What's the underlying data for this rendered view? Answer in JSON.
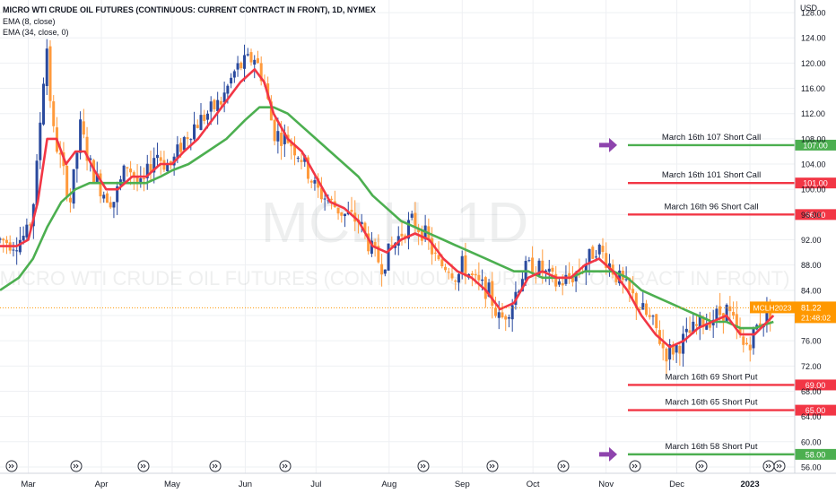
{
  "header": {
    "title": "MICRO WTI CRUDE OIL FUTURES (CONTINUOUS: CURRENT CONTRACT IN FRONT), 1D, NYMEX",
    "ema_fast": "EMA (8, close)",
    "ema_slow": "EMA (34, close, 0)"
  },
  "watermark": {
    "symbol": "MCLH, 1D",
    "name": "MICRO WTI CRUDE OIL FUTURES (CONTINUOUS: CURRENT CONTRACT IN FRONT)"
  },
  "chart_data": {
    "type": "candlestick",
    "y_axis": {
      "unit": "USD",
      "ticks": [
        128,
        124,
        120,
        116,
        112,
        108,
        104,
        100,
        96,
        92,
        88,
        84,
        80,
        76,
        72,
        68,
        64,
        60,
        56
      ],
      "ylim": [
        55,
        130
      ]
    },
    "x_axis": {
      "labels": [
        {
          "label": "Mar",
          "day": 0
        },
        {
          "label": "Apr",
          "day": 31
        },
        {
          "label": "May",
          "day": 61
        },
        {
          "label": "Jun",
          "day": 92
        },
        {
          "label": "Jul",
          "day": 122
        },
        {
          "label": "Aug",
          "day": 153
        },
        {
          "label": "Sep",
          "day": 184
        },
        {
          "label": "Oct",
          "day": 214
        },
        {
          "label": "Nov",
          "day": 245
        },
        {
          "label": "Dec",
          "day": 275
        },
        {
          "label": "2023",
          "day": 306
        }
      ],
      "xlim": [
        -12,
        325
      ]
    },
    "current_price": {
      "symbol": "MCLH2023",
      "price": "81.22",
      "countdown": "21:48:02",
      "value": 81.22
    },
    "price_path": [
      {
        "day": -12,
        "price": 92
      },
      {
        "day": -6,
        "price": 91.5
      },
      {
        "day": 0,
        "price": 93
      },
      {
        "day": 3,
        "price": 100
      },
      {
        "day": 6,
        "price": 116
      },
      {
        "day": 8,
        "price": 123
      },
      {
        "day": 10,
        "price": 110
      },
      {
        "day": 14,
        "price": 104
      },
      {
        "day": 18,
        "price": 98
      },
      {
        "day": 22,
        "price": 110
      },
      {
        "day": 26,
        "price": 104
      },
      {
        "day": 31,
        "price": 100
      },
      {
        "day": 36,
        "price": 98
      },
      {
        "day": 42,
        "price": 104
      },
      {
        "day": 48,
        "price": 100
      },
      {
        "day": 54,
        "price": 106
      },
      {
        "day": 58,
        "price": 104
      },
      {
        "day": 61,
        "price": 104
      },
      {
        "day": 66,
        "price": 108
      },
      {
        "day": 70,
        "price": 110
      },
      {
        "day": 76,
        "price": 112
      },
      {
        "day": 82,
        "price": 114
      },
      {
        "day": 88,
        "price": 119
      },
      {
        "day": 92,
        "price": 120
      },
      {
        "day": 96,
        "price": 121
      },
      {
        "day": 100,
        "price": 117
      },
      {
        "day": 104,
        "price": 109
      },
      {
        "day": 110,
        "price": 108
      },
      {
        "day": 116,
        "price": 105
      },
      {
        "day": 122,
        "price": 100
      },
      {
        "day": 128,
        "price": 98
      },
      {
        "day": 134,
        "price": 96
      },
      {
        "day": 140,
        "price": 95
      },
      {
        "day": 146,
        "price": 90
      },
      {
        "day": 150,
        "price": 88
      },
      {
        "day": 153,
        "price": 90
      },
      {
        "day": 158,
        "price": 93
      },
      {
        "day": 163,
        "price": 95
      },
      {
        "day": 168,
        "price": 93
      },
      {
        "day": 174,
        "price": 88
      },
      {
        "day": 178,
        "price": 88
      },
      {
        "day": 182,
        "price": 86
      },
      {
        "day": 184,
        "price": 88
      },
      {
        "day": 190,
        "price": 85
      },
      {
        "day": 195,
        "price": 84
      },
      {
        "day": 200,
        "price": 79
      },
      {
        "day": 205,
        "price": 82
      },
      {
        "day": 210,
        "price": 87
      },
      {
        "day": 214,
        "price": 88
      },
      {
        "day": 218,
        "price": 87
      },
      {
        "day": 224,
        "price": 85
      },
      {
        "day": 230,
        "price": 86
      },
      {
        "day": 236,
        "price": 88
      },
      {
        "day": 241,
        "price": 91
      },
      {
        "day": 245,
        "price": 89
      },
      {
        "day": 250,
        "price": 86
      },
      {
        "day": 256,
        "price": 83
      },
      {
        "day": 262,
        "price": 80
      },
      {
        "day": 266,
        "price": 78
      },
      {
        "day": 270,
        "price": 74
      },
      {
        "day": 275,
        "price": 75
      },
      {
        "day": 280,
        "price": 77
      },
      {
        "day": 286,
        "price": 79
      },
      {
        "day": 292,
        "price": 80
      },
      {
        "day": 296,
        "price": 81
      },
      {
        "day": 300,
        "price": 78
      },
      {
        "day": 303,
        "price": 75
      },
      {
        "day": 306,
        "price": 76
      },
      {
        "day": 310,
        "price": 79
      },
      {
        "day": 316,
        "price": 81.22
      }
    ],
    "ema_fast": {
      "name": "EMA (8, close)",
      "color": "#f23645",
      "points": [
        {
          "day": -12,
          "price": 91
        },
        {
          "day": -5,
          "price": 91
        },
        {
          "day": 0,
          "price": 92
        },
        {
          "day": 4,
          "price": 98
        },
        {
          "day": 8,
          "price": 108
        },
        {
          "day": 12,
          "price": 108
        },
        {
          "day": 16,
          "price": 104
        },
        {
          "day": 20,
          "price": 106
        },
        {
          "day": 24,
          "price": 106
        },
        {
          "day": 28,
          "price": 103
        },
        {
          "day": 33,
          "price": 100
        },
        {
          "day": 38,
          "price": 100
        },
        {
          "day": 44,
          "price": 102
        },
        {
          "day": 50,
          "price": 102
        },
        {
          "day": 56,
          "price": 104
        },
        {
          "day": 61,
          "price": 104
        },
        {
          "day": 66,
          "price": 106
        },
        {
          "day": 72,
          "price": 108
        },
        {
          "day": 78,
          "price": 111
        },
        {
          "day": 84,
          "price": 114
        },
        {
          "day": 90,
          "price": 117
        },
        {
          "day": 96,
          "price": 119
        },
        {
          "day": 100,
          "price": 117
        },
        {
          "day": 104,
          "price": 112
        },
        {
          "day": 110,
          "price": 108
        },
        {
          "day": 116,
          "price": 106
        },
        {
          "day": 122,
          "price": 102
        },
        {
          "day": 128,
          "price": 98
        },
        {
          "day": 134,
          "price": 97
        },
        {
          "day": 140,
          "price": 95
        },
        {
          "day": 146,
          "price": 91
        },
        {
          "day": 152,
          "price": 90
        },
        {
          "day": 158,
          "price": 92
        },
        {
          "day": 164,
          "price": 93
        },
        {
          "day": 170,
          "price": 92
        },
        {
          "day": 176,
          "price": 89
        },
        {
          "day": 182,
          "price": 87
        },
        {
          "day": 188,
          "price": 86
        },
        {
          "day": 194,
          "price": 84
        },
        {
          "day": 200,
          "price": 81
        },
        {
          "day": 206,
          "price": 82
        },
        {
          "day": 212,
          "price": 86
        },
        {
          "day": 218,
          "price": 87
        },
        {
          "day": 224,
          "price": 86
        },
        {
          "day": 230,
          "price": 86
        },
        {
          "day": 236,
          "price": 88
        },
        {
          "day": 242,
          "price": 89
        },
        {
          "day": 248,
          "price": 87
        },
        {
          "day": 254,
          "price": 84
        },
        {
          "day": 260,
          "price": 80
        },
        {
          "day": 266,
          "price": 77
        },
        {
          "day": 272,
          "price": 75
        },
        {
          "day": 278,
          "price": 76
        },
        {
          "day": 284,
          "price": 78
        },
        {
          "day": 290,
          "price": 79
        },
        {
          "day": 296,
          "price": 80
        },
        {
          "day": 302,
          "price": 77
        },
        {
          "day": 308,
          "price": 77
        },
        {
          "day": 316,
          "price": 80
        }
      ]
    },
    "ema_slow": {
      "name": "EMA (34, close, 0)",
      "color": "#4caf50",
      "points": [
        {
          "day": -12,
          "price": 84
        },
        {
          "day": -4,
          "price": 86
        },
        {
          "day": 2,
          "price": 89
        },
        {
          "day": 8,
          "price": 94
        },
        {
          "day": 14,
          "price": 98
        },
        {
          "day": 20,
          "price": 100
        },
        {
          "day": 26,
          "price": 101
        },
        {
          "day": 32,
          "price": 101
        },
        {
          "day": 38,
          "price": 101
        },
        {
          "day": 44,
          "price": 101
        },
        {
          "day": 50,
          "price": 101
        },
        {
          "day": 56,
          "price": 102
        },
        {
          "day": 61,
          "price": 103
        },
        {
          "day": 68,
          "price": 104
        },
        {
          "day": 76,
          "price": 106
        },
        {
          "day": 84,
          "price": 108
        },
        {
          "day": 92,
          "price": 111
        },
        {
          "day": 98,
          "price": 113
        },
        {
          "day": 104,
          "price": 113
        },
        {
          "day": 110,
          "price": 112
        },
        {
          "day": 116,
          "price": 110
        },
        {
          "day": 122,
          "price": 108
        },
        {
          "day": 128,
          "price": 106
        },
        {
          "day": 134,
          "price": 104
        },
        {
          "day": 140,
          "price": 102
        },
        {
          "day": 146,
          "price": 99
        },
        {
          "day": 152,
          "price": 97
        },
        {
          "day": 158,
          "price": 95
        },
        {
          "day": 164,
          "price": 94
        },
        {
          "day": 170,
          "price": 93
        },
        {
          "day": 176,
          "price": 92
        },
        {
          "day": 182,
          "price": 91
        },
        {
          "day": 188,
          "price": 90
        },
        {
          "day": 194,
          "price": 89
        },
        {
          "day": 200,
          "price": 88
        },
        {
          "day": 206,
          "price": 87
        },
        {
          "day": 212,
          "price": 87
        },
        {
          "day": 218,
          "price": 86
        },
        {
          "day": 224,
          "price": 86
        },
        {
          "day": 230,
          "price": 86
        },
        {
          "day": 236,
          "price": 87
        },
        {
          "day": 242,
          "price": 87
        },
        {
          "day": 248,
          "price": 87
        },
        {
          "day": 254,
          "price": 86
        },
        {
          "day": 260,
          "price": 84
        },
        {
          "day": 266,
          "price": 83
        },
        {
          "day": 272,
          "price": 82
        },
        {
          "day": 278,
          "price": 81
        },
        {
          "day": 284,
          "price": 80
        },
        {
          "day": 290,
          "price": 79
        },
        {
          "day": 296,
          "price": 79
        },
        {
          "day": 302,
          "price": 78
        },
        {
          "day": 308,
          "price": 78
        },
        {
          "day": 316,
          "price": 79
        }
      ]
    },
    "levels": [
      {
        "label": "March 16th 107 Short Call",
        "price": 107,
        "price_label": "107.00",
        "color": "#4caf50",
        "arrow": true
      },
      {
        "label": "March 16th 101 Short Call",
        "price": 101,
        "price_label": "101.00",
        "color": "#f23645",
        "arrow": false
      },
      {
        "label": "March 16th 96 Short Call",
        "price": 96,
        "price_label": "96.00",
        "color": "#f23645",
        "arrow": false
      },
      {
        "label": "March 16th 69 Short Put",
        "price": 69,
        "price_label": "69.00",
        "color": "#f23645",
        "arrow": false
      },
      {
        "label": "March 16th 65 Short Put",
        "price": 65,
        "price_label": "65.00",
        "color": "#f23645",
        "arrow": false
      },
      {
        "label": "March 16th 58 Short Put",
        "price": 58,
        "price_label": "58.00",
        "color": "#4caf50",
        "arrow": true
      }
    ],
    "candle_colors": {
      "up": "#2a4a9e",
      "down": "#ff9a3c"
    },
    "grid": true
  }
}
